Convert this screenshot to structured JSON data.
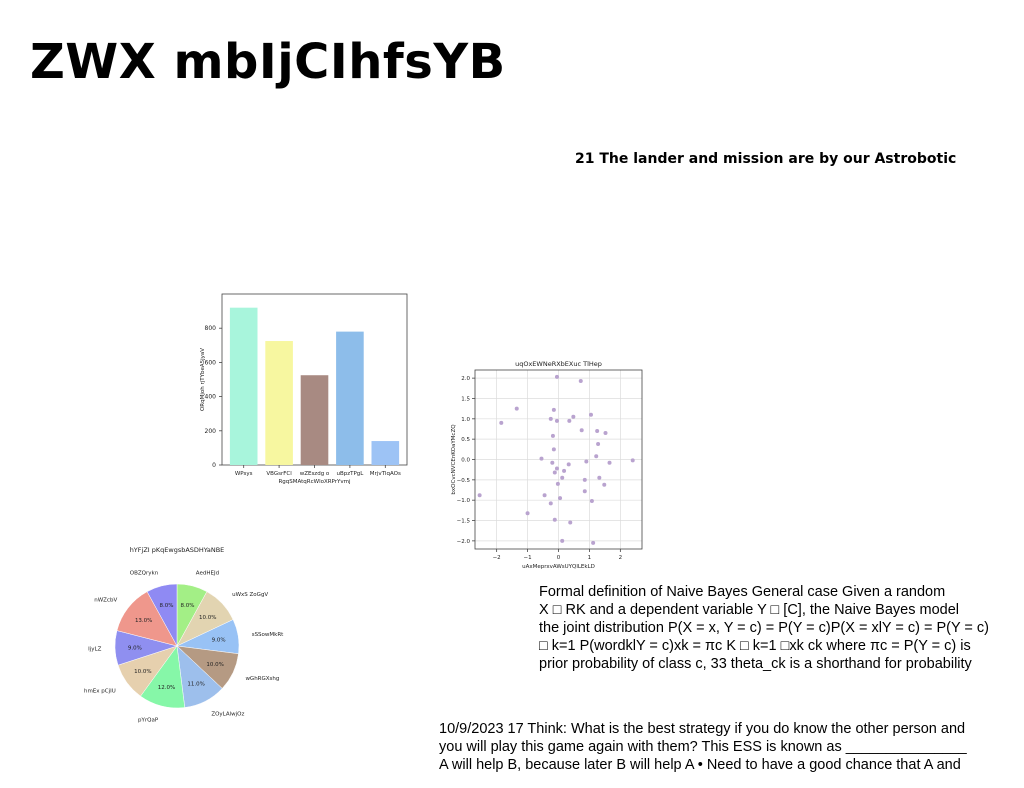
{
  "slide": {
    "title": "ZWX mbIjCIhfsYB",
    "subtitle": "21 The lander and mission are by our Astrobotic",
    "naive_bayes_lines": [
      "Formal definition of Naive Bayes General case Given a random",
      "X □ RK and a dependent variable Y □ [C], the Naive Bayes model",
      "the joint distribution P(X = x, Y = c) = P(Y = c)P(X = xlY = c) = P(Y = c)",
      "□ k=1 P(wordklY = c)xk = πc K □ k=1 □xk ck where πc = P(Y = c) is",
      "prior probability of class c, 33 theta_ck is a shorthand for probability"
    ],
    "ess_lines": [
      "10/9/2023 17 Think: What is the best strategy if you do know the other person and",
      "you will play this game again with them? This ESS is known as _______________",
      "A will help B, because later B will help A • Need to have a good chance that A and"
    ]
  },
  "chart_data": [
    {
      "type": "bar",
      "title": "",
      "xlabel": "RgqSMAtqRcWloXRPrYvmj",
      "ylabel": "ORqMjoh rjTYbeA5jyaV",
      "categories": [
        "WPsys",
        "VBGsrFCl",
        "wZEszdg o",
        "uBpzTPgL",
        "MrjvTlqAOs"
      ],
      "values": [
        920,
        725,
        525,
        780,
        140
      ],
      "colors": [
        "#a8f5dc",
        "#f7f7a0",
        "#a88a82",
        "#8dbdea",
        "#9dc3f5"
      ],
      "ylim": [
        0,
        1000
      ],
      "yticks": [
        0,
        200,
        400,
        600,
        800
      ]
    },
    {
      "type": "scatter",
      "title": "uqOxEWNeRXbEXuc TlHep",
      "xlabel": "uAxMeprxvAWsUYQlLEkLD",
      "ylabel": "bxOCvcNVCEnKOaYMcZQ",
      "xlim": [
        -2.7,
        2.7
      ],
      "ylim": [
        -2.2,
        2.2
      ],
      "xticks": [
        -2,
        -1,
        0,
        1,
        2
      ],
      "yticks": [
        -2.0,
        -1.5,
        -1.0,
        -0.5,
        0.0,
        0.5,
        1.0,
        1.5,
        2.0
      ],
      "grid": true,
      "color": "#b9a3cf",
      "points": [
        [
          -0.05,
          2.03
        ],
        [
          0.72,
          1.93
        ],
        [
          -1.35,
          1.25
        ],
        [
          -0.15,
          1.22
        ],
        [
          0.48,
          1.05
        ],
        [
          -0.25,
          1.0
        ],
        [
          0.35,
          0.95
        ],
        [
          1.05,
          1.1
        ],
        [
          -1.85,
          0.9
        ],
        [
          -0.05,
          0.95
        ],
        [
          1.25,
          0.7
        ],
        [
          1.52,
          0.65
        ],
        [
          0.75,
          0.72
        ],
        [
          -0.18,
          0.58
        ],
        [
          1.28,
          0.38
        ],
        [
          -0.15,
          0.25
        ],
        [
          1.22,
          0.08
        ],
        [
          -0.55,
          0.02
        ],
        [
          2.4,
          -0.02
        ],
        [
          1.65,
          -0.08
        ],
        [
          0.9,
          -0.05
        ],
        [
          -0.2,
          -0.08
        ],
        [
          0.33,
          -0.12
        ],
        [
          -0.05,
          -0.22
        ],
        [
          0.18,
          -0.28
        ],
        [
          -0.12,
          -0.32
        ],
        [
          0.85,
          -0.5
        ],
        [
          1.32,
          -0.45
        ],
        [
          -0.02,
          -0.6
        ],
        [
          0.12,
          -0.45
        ],
        [
          1.48,
          -0.62
        ],
        [
          0.85,
          -0.78
        ],
        [
          -0.45,
          -0.88
        ],
        [
          0.05,
          -0.95
        ],
        [
          1.08,
          -1.02
        ],
        [
          -0.25,
          -1.08
        ],
        [
          -1.0,
          -1.32
        ],
        [
          -0.12,
          -1.48
        ],
        [
          0.38,
          -1.55
        ],
        [
          -2.55,
          -0.88
        ],
        [
          0.12,
          -2.0
        ],
        [
          1.12,
          -2.05
        ]
      ]
    },
    {
      "type": "pie",
      "title": "hYFjZI pKqEwgsbASDHYaNBE",
      "labels": [
        "AedHEJd",
        "uWxS ZoGgV",
        "sSSowMkRt",
        "wGhRGXshg",
        "ZOyLAlwjOz",
        "pYrQaP",
        "hmEx pCjIU",
        "IjyLZ",
        "nWZcbV",
        "OBZQrykn"
      ],
      "values": [
        8.0,
        10.0,
        9.0,
        10.0,
        11.0,
        12.0,
        10.0,
        9.0,
        13.0,
        8.0
      ],
      "value_labels": [
        "8.0%",
        "10.0%",
        "9.0%",
        "10.0%",
        "11.0%",
        "12.0%",
        "10.0%",
        "9.0%",
        "13.0%",
        "8.0%"
      ],
      "colors": [
        "#a3ef86",
        "#e2d4b1",
        "#98c2f5",
        "#b59a83",
        "#9dbfec",
        "#86f7a8",
        "#e6d0ae",
        "#8f8ff0",
        "#ef978c",
        "#8f8af3"
      ]
    }
  ]
}
